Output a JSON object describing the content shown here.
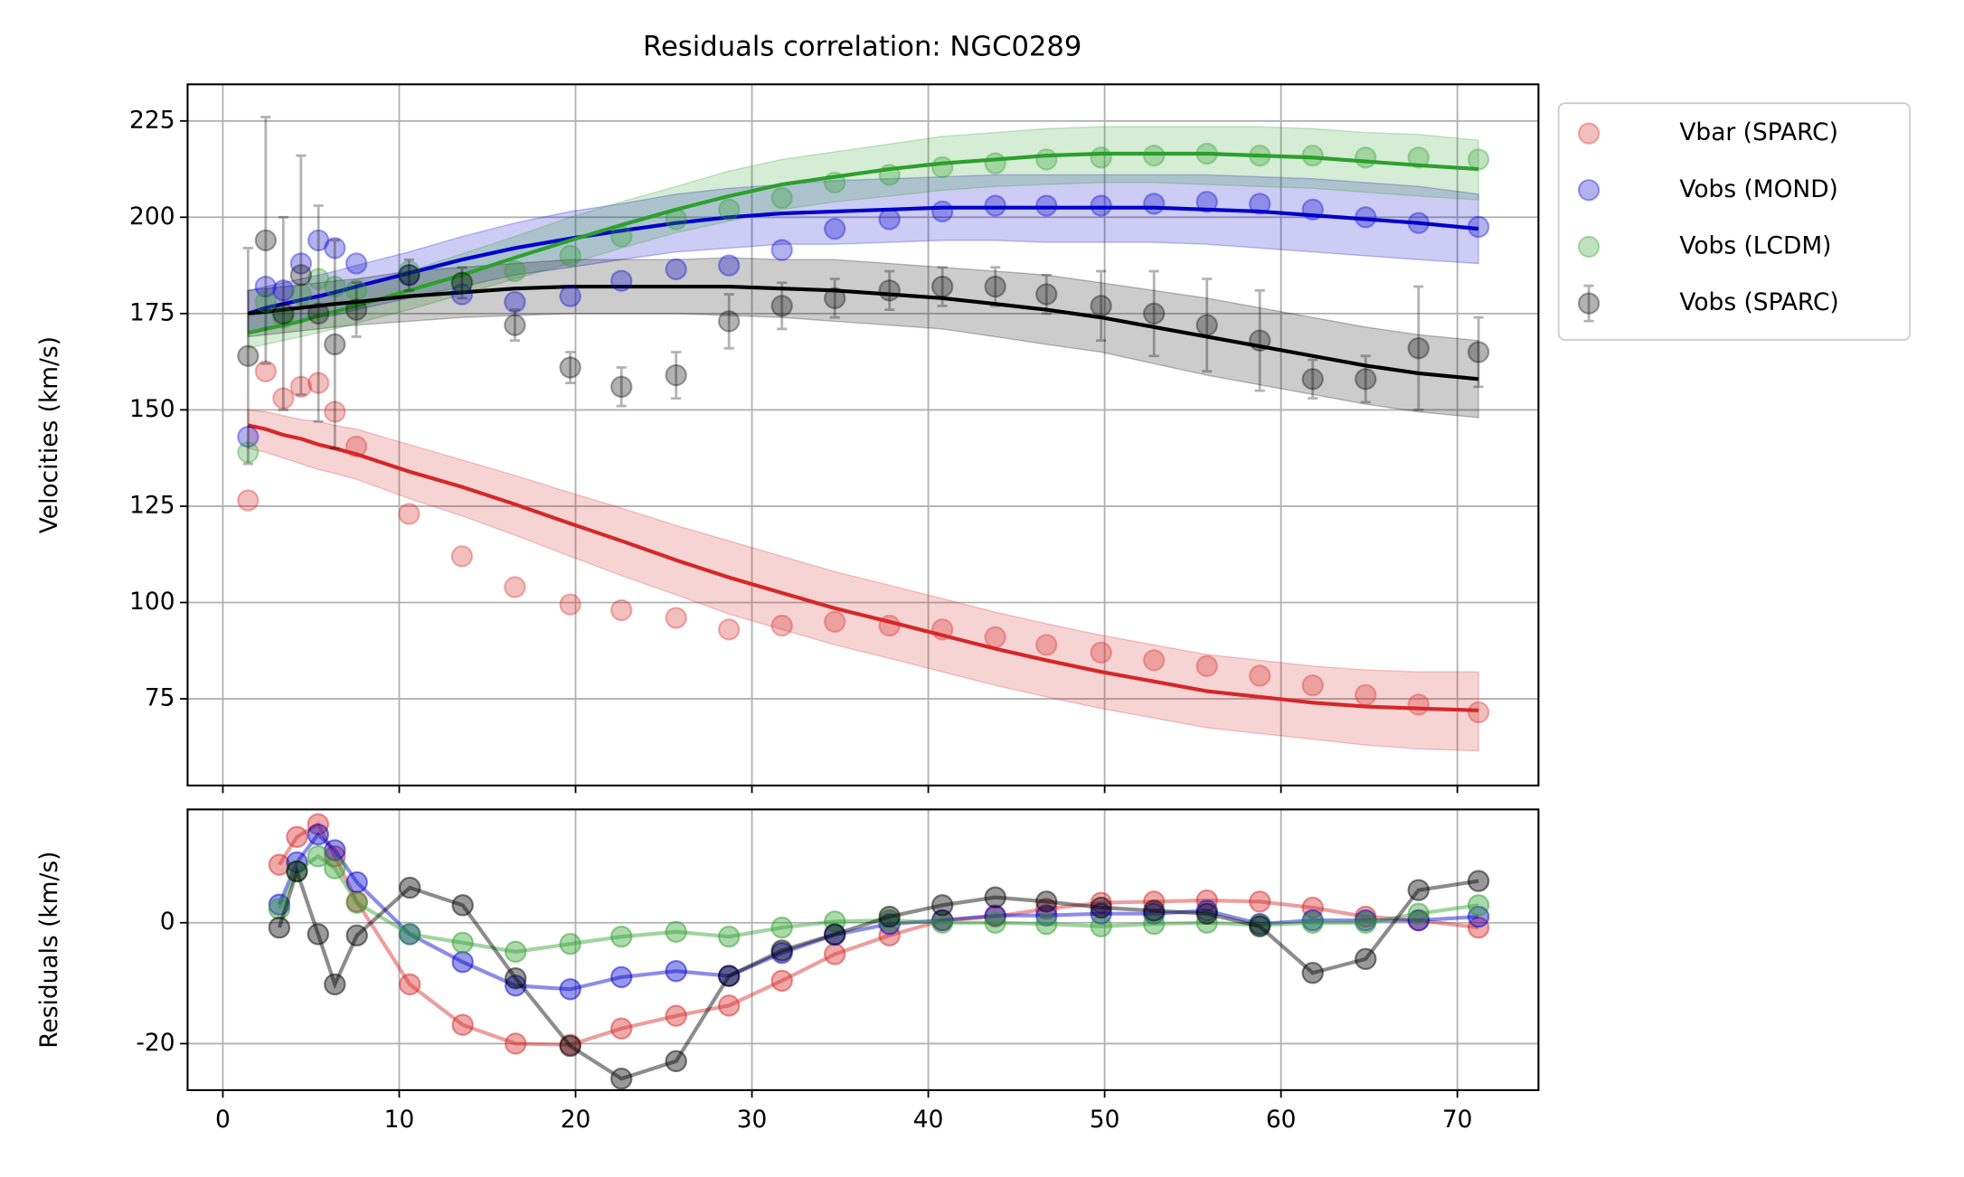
{
  "chart_data": [
    {
      "type": "scatter",
      "title": "Residuals correlation: NGC0289",
      "ylabel": "Velocities (km/s)",
      "x": [
        1.43,
        2.43,
        3.43,
        4.43,
        5.42,
        6.35,
        7.57,
        10.56,
        13.56,
        16.56,
        19.7,
        22.6,
        25.7,
        28.7,
        31.7,
        34.7,
        37.8,
        40.8,
        43.8,
        46.7,
        49.8,
        52.8,
        55.8,
        58.8,
        61.8,
        64.8,
        67.8,
        71.2
      ],
      "ylim": [
        52.5,
        234.5
      ],
      "yticks": [
        75,
        100,
        125,
        150,
        175,
        200,
        225
      ],
      "grid": true,
      "legend": "outside upper right",
      "series": [
        {
          "name": "Vbar (SPARC)",
          "color": "#d62728",
          "values": [
            126.5,
            160,
            153,
            156,
            157,
            149.5,
            140.5,
            123,
            112,
            104,
            99.5,
            98,
            96,
            93,
            94,
            95,
            94,
            93,
            91,
            89,
            87,
            85,
            83.5,
            81,
            78.5,
            76,
            73.5,
            71.5
          ],
          "fit": [
            146,
            145,
            143.5,
            142.5,
            141,
            140,
            138.5,
            134,
            130,
            125.5,
            120.5,
            116,
            111,
            106.5,
            102.5,
            98.5,
            95,
            91.5,
            88,
            85,
            82,
            79.5,
            77,
            75.5,
            74,
            73,
            72.5,
            72
          ],
          "band_lower": [
            140,
            139,
            137.5,
            136,
            134.5,
            133.5,
            132,
            127,
            122.5,
            117.5,
            112,
            107,
            102,
            97,
            93,
            89,
            85.5,
            82,
            78.5,
            75.5,
            72.5,
            70,
            67.5,
            66,
            64.5,
            63,
            62,
            61.5
          ],
          "band_upper": [
            150,
            149.5,
            148.5,
            147.5,
            147,
            146,
            145,
            141,
            137,
            133,
            128.5,
            124.5,
            120,
            116,
            112,
            108,
            104.5,
            101,
            97.5,
            94.5,
            91.5,
            89,
            86.5,
            85,
            83.5,
            82.5,
            82,
            82
          ]
        },
        {
          "name": "Vobs (MOND)",
          "color": "#0000cd",
          "values": [
            143,
            182,
            181,
            188,
            194,
            192,
            188,
            185,
            180,
            178,
            179.5,
            183.5,
            186.5,
            187.5,
            191.5,
            197,
            199.5,
            201.5,
            203,
            203,
            203,
            203.5,
            204,
            203.5,
            202,
            200,
            198.5,
            197.5
          ],
          "fit": [
            175,
            176.5,
            177.5,
            178.5,
            179.5,
            180.5,
            182,
            185.5,
            189,
            192,
            194.5,
            196.5,
            198.5,
            200,
            201,
            201.5,
            202,
            202.5,
            202.5,
            202.5,
            202.5,
            202.5,
            202,
            201.5,
            200.5,
            199.5,
            198.5,
            197
          ],
          "band_lower": [
            170,
            171.5,
            172,
            173,
            174,
            174.5,
            176,
            179,
            182,
            185,
            187,
            189,
            191,
            192,
            193,
            193,
            193.5,
            194,
            194,
            193.5,
            193.5,
            193.5,
            193,
            192,
            191,
            190,
            189,
            188
          ],
          "band_upper": [
            181,
            182,
            183,
            184,
            185,
            186,
            187.5,
            191,
            195,
            198.5,
            201.5,
            203.5,
            206,
            207.5,
            208.5,
            209.5,
            210,
            210.5,
            211,
            211,
            211,
            211,
            211,
            210.5,
            210,
            209,
            208,
            206
          ]
        },
        {
          "name": "Vobs (LCDM)",
          "color": "#2ca02c",
          "values": [
            139,
            178,
            174,
            180,
            184,
            182,
            181,
            186,
            183,
            186,
            190,
            195,
            199.5,
            202,
            205,
            209,
            211,
            213,
            214,
            215,
            215.5,
            216,
            216.5,
            216,
            216,
            215.5,
            215.5,
            215
          ],
          "fit": [
            170,
            171,
            172,
            173,
            174.5,
            175.5,
            177,
            181,
            185,
            189.5,
            194,
            198,
            202,
            205.5,
            208.5,
            210.5,
            212.5,
            214,
            215,
            216,
            216.5,
            216.5,
            216.5,
            216,
            215.5,
            214.5,
            213.5,
            212.5
          ],
          "band_lower": [
            166,
            167,
            168,
            169,
            170,
            171,
            172.5,
            176,
            180,
            184,
            188,
            192,
            196,
            199,
            202,
            204,
            205.5,
            207,
            208,
            208.5,
            209,
            209,
            208.5,
            208,
            207.5,
            206.5,
            205.5,
            204.5
          ],
          "band_upper": [
            174,
            175,
            176,
            177,
            179,
            180,
            181.5,
            186,
            190.5,
            195,
            200,
            204,
            208,
            212,
            215,
            217,
            219,
            221,
            222,
            223,
            223.5,
            223.5,
            223.5,
            223.5,
            223,
            222,
            221.5,
            220
          ]
        },
        {
          "name": "Vobs (SPARC)",
          "color": "#000000",
          "values": [
            164,
            194,
            175,
            185,
            175,
            167,
            176,
            185,
            183,
            172,
            161,
            156,
            159,
            173,
            177,
            179,
            181,
            182,
            182,
            180,
            177,
            175,
            172,
            168,
            158,
            158,
            166,
            165
          ],
          "errors": [
            28,
            32,
            25,
            31,
            28,
            27,
            7,
            4,
            4,
            4,
            4,
            5,
            6,
            7,
            6,
            5,
            5,
            5,
            5,
            5,
            9,
            11,
            12,
            13,
            5,
            6,
            16,
            9
          ],
          "fit": [
            175,
            175.5,
            176,
            176.5,
            177,
            177.5,
            178,
            179.5,
            180.5,
            181.5,
            182,
            182,
            182,
            182,
            181.5,
            181,
            180,
            179,
            177.5,
            176,
            174,
            171.5,
            169,
            166.5,
            164,
            161.5,
            159.5,
            158
          ],
          "band_lower": [
            169,
            169.5,
            170,
            170.5,
            171,
            171.5,
            172,
            173,
            174,
            174.5,
            175,
            175,
            175,
            174.5,
            174,
            173,
            172,
            171,
            169,
            167,
            165,
            162,
            159,
            156.5,
            154,
            151.5,
            149.5,
            148
          ],
          "band_upper": [
            181,
            181.5,
            182,
            182.5,
            183,
            183.5,
            184,
            186,
            187,
            188,
            189,
            189,
            189,
            189.5,
            189,
            189,
            188,
            187,
            186,
            185,
            183,
            181,
            179,
            176.5,
            174,
            171.5,
            169.5,
            168
          ]
        }
      ]
    },
    {
      "type": "line",
      "ylabel": "Residuals (km/s)",
      "x": [
        3.2,
        4.2,
        5.4,
        6.35,
        7.6,
        10.6,
        13.6,
        16.6,
        19.7,
        22.6,
        25.7,
        28.7,
        31.7,
        34.7,
        37.8,
        40.8,
        43.8,
        46.7,
        49.8,
        52.8,
        55.8,
        58.8,
        61.8,
        64.8,
        67.8,
        71.2
      ],
      "xlim": [
        -2.0,
        74.6
      ],
      "xticks": [
        0,
        10,
        20,
        30,
        40,
        50,
        60,
        70
      ],
      "ylim": [
        -27.7,
        18.75
      ],
      "yticks": [
        -20,
        0
      ],
      "grid": true,
      "series": [
        {
          "color": "#d62728",
          "values": [
            9.6,
            14.2,
            16.3,
            11,
            3.5,
            -10.2,
            -16.9,
            -20,
            -20.2,
            -17.5,
            -15.4,
            -13.7,
            -9.6,
            -5.2,
            -2.1,
            0.4,
            1,
            2.3,
            3.3,
            3.5,
            3.7,
            3.5,
            2.5,
            1,
            0.4,
            -0.8
          ]
        },
        {
          "color": "#0000cd",
          "values": [
            3,
            10,
            14.6,
            12,
            6.7,
            -1.9,
            -6.5,
            -10.4,
            -11,
            -9,
            -8,
            -8.8,
            -5,
            -2,
            -0.2,
            0.4,
            1.2,
            1.2,
            1.5,
            1.5,
            2,
            -0.2,
            0.4,
            0.4,
            0.4,
            1
          ]
        },
        {
          "color": "#2ca02c",
          "values": [
            2.3,
            8.5,
            11,
            9,
            3.3,
            -1.9,
            -3.3,
            -4.8,
            -3.5,
            -2.3,
            -1.5,
            -2.3,
            -0.8,
            0.2,
            0.4,
            0,
            0,
            -0.2,
            -0.6,
            -0.2,
            0,
            -0.4,
            0,
            0,
            1.5,
            2.9
          ]
        },
        {
          "color": "#000000",
          "values": [
            -0.8,
            8.5,
            -1.9,
            -10.2,
            -2.1,
            5.8,
            2.9,
            -9.2,
            -20.4,
            -25.8,
            -22.9,
            -8.8,
            -4.6,
            -1.9,
            1,
            2.9,
            4.2,
            3.5,
            2.5,
            2,
            1.5,
            -0.6,
            -8.3,
            -6,
            5.4,
            6.9
          ]
        }
      ]
    }
  ]
}
